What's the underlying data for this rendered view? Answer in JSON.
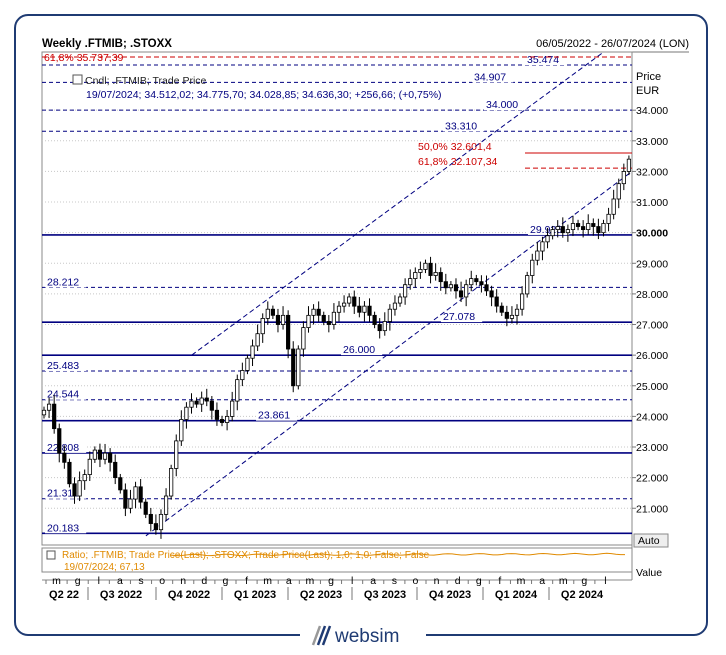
{
  "header": {
    "title": "Weekly .FTMIB; .STOXX",
    "date_range": "06/05/2022 - 26/07/2024 (LON)"
  },
  "legend": {
    "series_label": "Cndl; .FTMIB; Trade Price",
    "ohlc_line": "19/07/2024; 34.512,02; 34.775,70; 34.028,85; 34.636,30; +256,66; (+0,75%)"
  },
  "axis": {
    "y_title_1": "Price",
    "y_title_2": "EUR",
    "auto_label": "Auto",
    "value_label": "Value",
    "y_ticks": [
      {
        "v": 21000,
        "label": "21.000"
      },
      {
        "v": 22000,
        "label": "22.000"
      },
      {
        "v": 23000,
        "label": "23.000"
      },
      {
        "v": 24000,
        "label": "24.000"
      },
      {
        "v": 25000,
        "label": "25.000"
      },
      {
        "v": 26000,
        "label": "26.000"
      },
      {
        "v": 27000,
        "label": "27.000"
      },
      {
        "v": 28000,
        "label": "28.000"
      },
      {
        "v": 29000,
        "label": "29.000"
      },
      {
        "v": 30000,
        "label": "30.000"
      },
      {
        "v": 31000,
        "label": "31.000"
      },
      {
        "v": 32000,
        "label": "32.000"
      },
      {
        "v": 33000,
        "label": "33.000"
      },
      {
        "v": 34000,
        "label": "34.000"
      }
    ],
    "months": [
      "m",
      "g",
      "l",
      "a",
      "s",
      "o",
      "n",
      "d",
      "g",
      "f",
      "m",
      "a",
      "m",
      "g",
      "l",
      "a",
      "s",
      "o",
      "n",
      "d",
      "g",
      "f",
      "m",
      "a",
      "m",
      "g",
      "l"
    ],
    "quarters": [
      "Q2 22",
      "Q3 2022",
      "Q4 2022",
      "Q1 2023",
      "Q2 2023",
      "Q3 2023",
      "Q4 2023",
      "Q1 2024",
      "Q2 2024"
    ]
  },
  "levels": [
    {
      "v": 20183,
      "label": "20.183",
      "style": "solid"
    },
    {
      "v": 21311,
      "label": "21.311",
      "style": "dashed"
    },
    {
      "v": 22808,
      "label": "22.808",
      "style": "solid"
    },
    {
      "v": 23861,
      "label": "23.861",
      "style": "solid"
    },
    {
      "v": 24544,
      "label": "24.544",
      "style": "dashed"
    },
    {
      "v": 25483,
      "label": "25.483",
      "style": "dashed"
    },
    {
      "v": 26000,
      "label": "26.000",
      "style": "solid"
    },
    {
      "v": 27078,
      "label": "27.078",
      "style": "solid"
    },
    {
      "v": 28212,
      "label": "28.212",
      "style": "dashed"
    },
    {
      "v": 29925,
      "label": "29.925",
      "style": "solid"
    },
    {
      "v": 33310,
      "label": "33.310",
      "style": "dashed"
    },
    {
      "v": 34000,
      "label": "34.000",
      "style": "dashed"
    },
    {
      "v": 34907,
      "label": "34.907",
      "style": "dashed"
    },
    {
      "v": 35474,
      "label": "35.474",
      "style": "dashed"
    }
  ],
  "fib_levels": [
    {
      "v": 35737.39,
      "label": "61,8% 35.737,39"
    },
    {
      "v": 32601.4,
      "label": "50,0% 32.601,4"
    },
    {
      "v": 32107.34,
      "label": "61,8% 32.107,34"
    }
  ],
  "ratio_panel": {
    "label_1": "Ratio; .FTMIB; Trade Price(Last); .STOXX; Trade Price(Last); 1,0; 1,0; False; False",
    "label_2": "19/07/2024; 67,13"
  },
  "brand": {
    "name": "websim"
  },
  "colors": {
    "navy": "#000080",
    "fib": "#cc0000",
    "ratio": "#e08a00",
    "frame": "#1f3b73"
  },
  "chart_data": {
    "type": "candlestick",
    "title": "Weekly .FTMIB; .STOXX",
    "ylabel": "Price EUR",
    "ylim": [
      19800,
      35900
    ],
    "x_start": "2022-05-06",
    "x_end": "2024-07-26",
    "channel": {
      "lower": {
        "from": [
          "2022-09-26",
          20100
        ],
        "to": [
          "2024-07-26",
          32000
        ]
      },
      "upper": {
        "from": [
          "2022-11-28",
          26000
        ],
        "to": [
          "2024-06-17",
          35900
        ]
      }
    },
    "closes": [
      24200,
      24400,
      23600,
      22800,
      22500,
      21800,
      21400,
      21900,
      22100,
      22600,
      22900,
      22600,
      22800,
      22500,
      22000,
      21600,
      21000,
      21300,
      21700,
      21200,
      20800,
      20500,
      20300,
      20800,
      21400,
      22300,
      23200,
      23900,
      24300,
      24500,
      24400,
      24600,
      24500,
      24200,
      23900,
      23800,
      24000,
      24500,
      25200,
      25500,
      25900,
      26300,
      26700,
      27200,
      27500,
      27300,
      27000,
      27300,
      26200,
      25000,
      26200,
      26900,
      27300,
      27500,
      27300,
      27100,
      27000,
      27400,
      27600,
      27700,
      27900,
      27600,
      27400,
      27600,
      27300,
      27000,
      26800,
      27100,
      27500,
      27700,
      27900,
      28300,
      28500,
      28700,
      28800,
      29000,
      28600,
      28700,
      28400,
      28200,
      28300,
      28100,
      27900,
      28300,
      28500,
      28400,
      28300,
      28100,
      27900,
      27600,
      27400,
      27200,
      27300,
      27500,
      28000,
      28600,
      29100,
      29400,
      29700,
      29900,
      30100,
      30200,
      30000,
      30100,
      30300,
      30200,
      30100,
      30300,
      30200,
      30000,
      30300,
      30600,
      31100,
      31600,
      32000,
      32400,
      32900,
      33300,
      33500,
      33800,
      34100,
      34300,
      34700,
      34500,
      34200,
      34400,
      34900,
      34500,
      34000,
      33600,
      34100,
      34400,
      34700,
      34500,
      34900,
      34300,
      33800,
      33200,
      33000,
      33500,
      33900,
      34300,
      34600
    ]
  }
}
